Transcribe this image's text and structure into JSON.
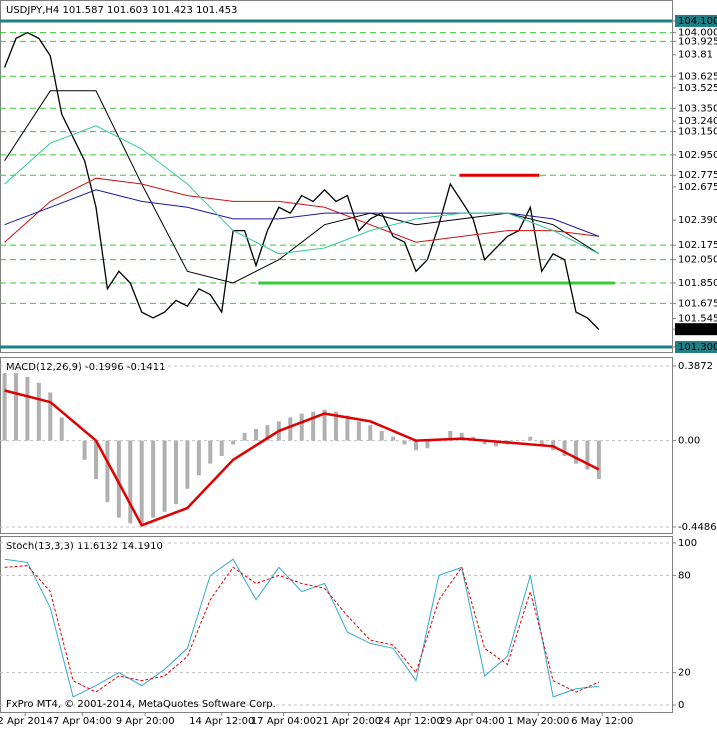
{
  "chart_data": [
    {
      "type": "line",
      "title": "USDJPY,H4  101.587 101.603 101.423 101.453",
      "xlim": [
        -0.4,
        58.4
      ],
      "xticks": [
        {
          "value": 1.8,
          "label": "2 Apr 2014"
        },
        {
          "value": 6.8,
          "label": "7 Apr 04:00"
        },
        {
          "value": 12.3,
          "label": "9 Apr 20:00"
        },
        {
          "value": 19,
          "label": "14 Apr 12:00"
        },
        {
          "value": 24.4,
          "label": "17 Apr 04:00"
        },
        {
          "value": 30.1,
          "label": "21 Apr 20:00"
        },
        {
          "value": 35.5,
          "label": "24 Apr 12:00"
        },
        {
          "value": 40.9,
          "label": "29 Apr 04:00"
        },
        {
          "value": 46.7,
          "label": "1 May 20:00"
        },
        {
          "value": 52.3,
          "label": "6 May 12:00"
        }
      ],
      "ylim": [
        101.257,
        104.28
      ],
      "yticks": [
        {
          "value": 104.1,
          "label": "104.100",
          "color": "#1f7f86"
        },
        {
          "value": 104.0,
          "label": "104.000"
        },
        103.925,
        103.81,
        103.625,
        103.525,
        {
          "value": 103.35,
          "label": "103.350"
        },
        {
          "value": 103.24,
          "label": "103.240"
        },
        {
          "value": 103.15,
          "label": "103.150"
        },
        {
          "value": 102.95,
          "label": "102.950"
        },
        102.775,
        102.675,
        {
          "value": 102.39,
          "label": "102.390"
        },
        102.175,
        {
          "value": 102.05,
          "label": "102.050"
        },
        {
          "value": 101.85,
          "label": "101.850"
        },
        101.675,
        101.545,
        {
          "value": 101.453,
          "label": "101.453",
          "color": "#000000"
        },
        {
          "value": 101.3,
          "label": "101.300",
          "color": "#1f7f86"
        }
      ],
      "levels": [
        104.0,
        103.925,
        103.625,
        103.35,
        103.15,
        102.95,
        102.775,
        102.175,
        102.05,
        101.85,
        101.675
      ],
      "bounds": [
        {
          "value": 104.1,
          "color": "#1f7f86"
        },
        {
          "value": 101.3,
          "color": "#1f7f86"
        }
      ],
      "segments": [
        {
          "value": 101.85,
          "from": 22.2,
          "to": 53.4,
          "color": "#33cc33"
        },
        {
          "value": 102.775,
          "from": 39.8,
          "to": 46.8,
          "color": "#e00000"
        }
      ],
      "series": [
        {
          "name": "USDJPY",
          "color": "#000000",
          "values": [
            103.7,
            103.95,
            104.0,
            103.95,
            103.8,
            103.3,
            103.1,
            102.9,
            102.5,
            101.8,
            101.95,
            101.85,
            101.6,
            101.55,
            101.6,
            101.7,
            101.65,
            101.8,
            101.75,
            101.6,
            102.3,
            102.3,
            102.0,
            102.3,
            102.5,
            102.45,
            102.6,
            102.55,
            102.65,
            102.55,
            102.6,
            102.3,
            102.4,
            102.45,
            102.25,
            102.2,
            101.95,
            102.05,
            102.35,
            102.7,
            102.55,
            102.4,
            102.05,
            102.15,
            102.25,
            102.3,
            102.5,
            101.95,
            102.1,
            102.05,
            101.6,
            101.55,
            101.45
          ]
        },
        {
          "color": "#000000",
          "x": [
            0,
            4,
            8,
            12,
            16,
            20,
            24,
            28,
            32,
            36,
            40,
            44,
            48,
            52
          ],
          "values": [
            102.9,
            103.5,
            103.5,
            102.7,
            101.95,
            101.85,
            102.05,
            102.35,
            102.45,
            102.35,
            102.4,
            102.45,
            102.35,
            102.1
          ]
        },
        {
          "color": "#cc1111",
          "x": [
            0,
            4,
            8,
            12,
            16,
            20,
            24,
            28,
            32,
            36,
            40,
            44,
            48,
            52
          ],
          "values": [
            102.2,
            102.55,
            102.75,
            102.7,
            102.6,
            102.55,
            102.55,
            102.5,
            102.35,
            102.2,
            102.25,
            102.3,
            102.3,
            102.25
          ]
        },
        {
          "color": "#1a1aa0",
          "x": [
            0,
            4,
            8,
            12,
            16,
            20,
            24,
            28,
            32,
            36,
            40,
            44,
            48,
            52
          ],
          "values": [
            102.35,
            102.5,
            102.65,
            102.55,
            102.5,
            102.4,
            102.4,
            102.45,
            102.45,
            102.45,
            102.45,
            102.45,
            102.4,
            102.25
          ]
        },
        {
          "color": "#33cc99",
          "x": [
            0,
            4,
            8,
            12,
            16,
            20,
            24,
            28,
            32,
            36,
            40,
            44,
            48,
            52
          ],
          "values": [
            102.7,
            103.05,
            103.2,
            103.0,
            102.7,
            102.3,
            102.1,
            102.15,
            102.3,
            102.4,
            102.45,
            102.45,
            102.3,
            102.1
          ]
        }
      ]
    },
    {
      "type": "macd",
      "title": "MACD(12,26,9) -0.1996 -0.1411",
      "ylim": [
        -0.48,
        0.434
      ],
      "yticks": [
        0.3872,
        {
          "value": 0,
          "label": "0.00"
        },
        -0.4486
      ],
      "series": [
        {
          "color": "#b0b0b0",
          "values": [
            0.35,
            0.35,
            0.33,
            0.3,
            0.25,
            0.12,
            0.0,
            -0.1,
            -0.2,
            -0.32,
            -0.4,
            -0.43,
            -0.43,
            -0.4,
            -0.37,
            -0.33,
            -0.25,
            -0.18,
            -0.12,
            -0.08,
            -0.02,
            0.04,
            0.06,
            0.08,
            0.1,
            0.12,
            0.14,
            0.15,
            0.16,
            0.15,
            0.13,
            0.1,
            0.08,
            0.05,
            0.02,
            -0.02,
            -0.05,
            -0.04,
            0.0,
            0.05,
            0.04,
            0.02,
            -0.02,
            -0.03,
            -0.02,
            0.0,
            0.02,
            -0.03,
            -0.05,
            -0.08,
            -0.12,
            -0.15,
            -0.2
          ]
        },
        {
          "color": "#e00000",
          "x": [
            0,
            4,
            8,
            12,
            16,
            20,
            24,
            28,
            32,
            36,
            40,
            44,
            48,
            52
          ],
          "values": [
            0.26,
            0.2,
            0.0,
            -0.44,
            -0.35,
            -0.1,
            0.05,
            0.14,
            0.1,
            0.0,
            0.01,
            -0.01,
            -0.03,
            -0.15
          ]
        }
      ]
    },
    {
      "type": "stoch",
      "title": "Stoch(13,3,3) 11.6132 14.1910",
      "annotation": "FxPro MT4, © 2001-2014, MetaQuotes Software Corp.",
      "ylim": [
        -4.3,
        104.3
      ],
      "yticks": [
        100,
        80,
        20,
        0
      ],
      "series": [
        {
          "color": "#33aacc",
          "x": [
            0,
            2,
            4,
            6,
            8,
            10,
            12,
            14,
            16,
            18,
            20,
            22,
            24,
            26,
            28,
            30,
            32,
            34,
            36,
            38,
            40,
            42,
            44,
            46,
            48,
            50,
            52
          ],
          "values": [
            90,
            88,
            60,
            5,
            12,
            20,
            12,
            22,
            35,
            80,
            90,
            65,
            85,
            70,
            75,
            45,
            38,
            35,
            15,
            80,
            85,
            18,
            30,
            80,
            5,
            10,
            11.6
          ]
        },
        {
          "color": "#e00000",
          "x": [
            0,
            2,
            4,
            6,
            8,
            10,
            12,
            14,
            16,
            18,
            20,
            22,
            24,
            26,
            28,
            30,
            32,
            34,
            36,
            38,
            40,
            42,
            44,
            46,
            48,
            50,
            52
          ],
          "values": [
            85,
            86,
            70,
            15,
            8,
            18,
            15,
            18,
            30,
            65,
            85,
            75,
            80,
            75,
            72,
            55,
            40,
            37,
            20,
            65,
            85,
            35,
            25,
            70,
            15,
            8,
            14.2
          ]
        }
      ]
    }
  ]
}
